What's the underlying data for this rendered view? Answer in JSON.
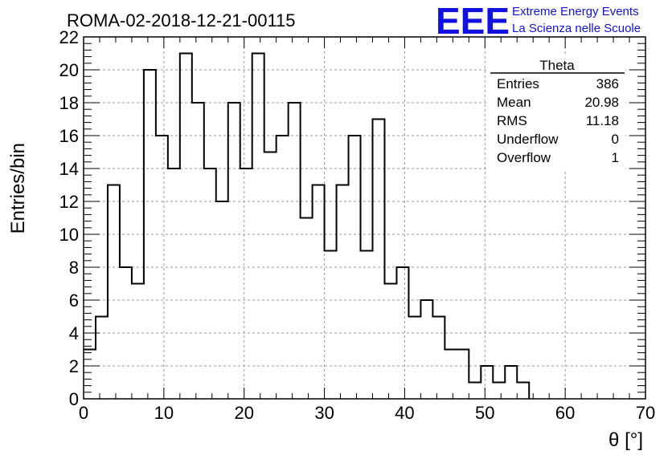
{
  "chart_data": {
    "type": "bar",
    "title": "ROMA-02-2018-12-21-00115",
    "xlabel": "θ [°]",
    "ylabel": "Entries/bin",
    "xlim": [
      0,
      70
    ],
    "ylim": [
      0,
      22
    ],
    "x_ticks": [
      "0",
      "10",
      "20",
      "30",
      "40",
      "50",
      "60",
      "70"
    ],
    "y_ticks": [
      "0",
      "2",
      "4",
      "6",
      "8",
      "10",
      "12",
      "14",
      "16",
      "18",
      "20",
      "22"
    ],
    "grid": true,
    "bin_width": 1.5,
    "bin_edges_start": 0,
    "values": [
      3,
      5,
      13,
      8,
      7,
      20,
      16,
      14,
      21,
      18,
      14,
      12,
      18,
      14,
      21,
      15,
      16,
      18,
      11,
      13,
      9,
      13,
      16,
      9,
      17,
      7,
      8,
      5,
      6,
      5,
      3,
      3,
      1,
      2,
      1,
      2,
      1,
      0,
      0,
      0,
      0,
      0,
      0,
      0,
      0,
      0,
      0
    ]
  },
  "stats_box": {
    "title": "Theta",
    "rows": [
      {
        "label": "Entries",
        "value": "386"
      },
      {
        "label": "Mean",
        "value": "20.98"
      },
      {
        "label": "RMS",
        "value": "11.18"
      },
      {
        "label": "Underflow",
        "value": "0"
      },
      {
        "label": "Overflow",
        "value": "1"
      }
    ]
  },
  "logo": {
    "mark": "EEE",
    "line1": "Extreme Energy Events",
    "line2": "La Scienza nelle Scuole",
    "color": "#1010e0"
  }
}
